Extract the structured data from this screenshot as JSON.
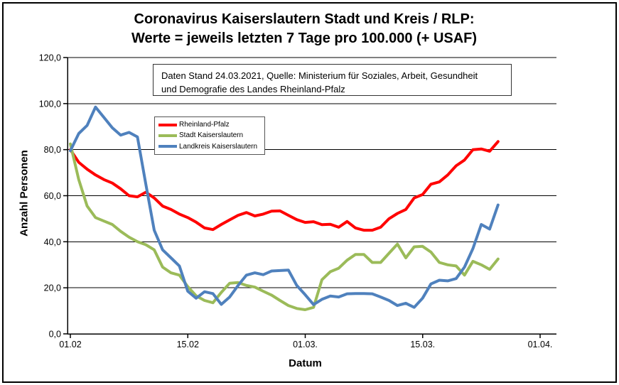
{
  "frame": {
    "border_color": "#000000",
    "background": "#FFFFFF"
  },
  "chart_data": {
    "type": "line",
    "title_line1": "Coronavirus Kaiserslautern Stadt und Kreis / RLP:",
    "title_line2": "Werte = jeweils letzten 7 Tage pro 100.000 (+ USAF)",
    "annotation_line1": "Daten Stand 24.03.2021, Quelle: Ministerium für Soziales, Arbeit, Gesundheit",
    "annotation_line2": "und Demografie des Landes Rheinland-Pfalz",
    "xlabel": "Datum",
    "ylabel": "Anzahl Personen",
    "ylim": [
      0,
      120
    ],
    "y_tick_interval": 20,
    "grid": "horizontal",
    "legend_position": "inner-left",
    "axis_color": "#000000",
    "y_tick_labels": [
      "0,0",
      "20,0",
      "40,0",
      "60,0",
      "80,0",
      "100,0",
      "120,0"
    ],
    "x_tick_labels": [
      "01.02",
      "15.02",
      "01.03.",
      "15.03.",
      "01.04."
    ],
    "x_start_date": "01.02.2021",
    "x_end_date": "24.03.2021",
    "x_cadence": "daily",
    "series": [
      {
        "name": "Rheinland-Pfalz",
        "color": "#FF0000",
        "values": [
          80,
          74.5,
          71.5,
          69,
          67,
          65.5,
          63,
          60,
          59.5,
          61.5,
          59,
          55.5,
          54,
          52,
          50.5,
          48.5,
          46,
          45.3,
          47.5,
          49.5,
          51.5,
          52.7,
          51.2,
          52,
          53.3,
          53.4,
          51.5,
          49.6,
          48.4,
          48.7,
          47.4,
          47.6,
          46.3,
          48.8,
          46,
          45,
          45,
          46.3,
          50,
          52.3,
          54,
          59,
          60.5,
          65,
          66,
          69,
          73,
          75.5,
          80,
          80.3,
          79.3,
          83.5
        ]
      },
      {
        "name": "Stadt Kaiserslautern",
        "color": "#9BBB59",
        "values": [
          82.5,
          67,
          55.5,
          50.5,
          49,
          47.5,
          44.5,
          42,
          40,
          38.7,
          36.5,
          29,
          26.5,
          25.5,
          20.5,
          16.5,
          14.5,
          13.5,
          18,
          22,
          22.3,
          21,
          20.3,
          18.5,
          16.8,
          14.5,
          12.3,
          11,
          10.5,
          11.5,
          23.5,
          27,
          28.5,
          32,
          34.5,
          34.5,
          31,
          31,
          35,
          39,
          33,
          37.8,
          38,
          35.5,
          31,
          30,
          29.5,
          25.5,
          31.5,
          30,
          28,
          32.5
        ]
      },
      {
        "name": "Landkreis Kaiserslautern",
        "color": "#4F81BD",
        "values": [
          79.5,
          87,
          90.5,
          98.5,
          94,
          89.5,
          86.3,
          87.5,
          85.5,
          65,
          45,
          36.5,
          33,
          29.5,
          18.5,
          15.5,
          18.3,
          17.5,
          12.8,
          16,
          21,
          25.5,
          26.5,
          25.7,
          27.3,
          27.5,
          27.7,
          21,
          17,
          12.7,
          15,
          16.4,
          16,
          17.4,
          17.5,
          17.5,
          17.4,
          16,
          14.5,
          12.3,
          13.3,
          11.5,
          15.5,
          21.7,
          23.3,
          23,
          24,
          29,
          37,
          47.5,
          45.5,
          56
        ]
      }
    ]
  }
}
